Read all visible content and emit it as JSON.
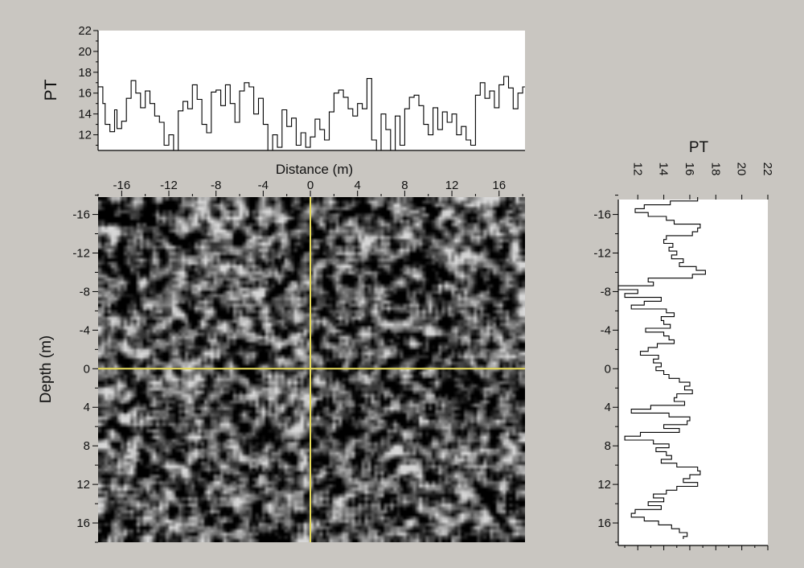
{
  "colors": {
    "background": "#c9c6c1",
    "panel": "#ffffff",
    "crosshair": "#e8dc5a",
    "line": "#000000"
  },
  "chart_data": [
    {
      "type": "line",
      "name_key": "top-profile",
      "ylabel": "PT",
      "xlabel": "Distance (m)",
      "ylim": [
        10.5,
        22
      ],
      "xlim": [
        -18,
        18.2
      ],
      "yticks": [
        12,
        14,
        16,
        18,
        20,
        22
      ],
      "step": true,
      "x": [
        -18,
        -17.6,
        -17.4,
        -17,
        -16.6,
        -16.4,
        -16,
        -15.6,
        -15.2,
        -14.8,
        -14.4,
        -14,
        -13.6,
        -13.2,
        -12.8,
        -12.4,
        -12,
        -11.6,
        -11.2,
        -10.8,
        -10.4,
        -10,
        -9.6,
        -9.2,
        -8.8,
        -8.4,
        -8,
        -7.6,
        -7.2,
        -6.8,
        -6.4,
        -6,
        -5.6,
        -5.2,
        -4.8,
        -4.4,
        -4,
        -3.6,
        -3.2,
        -2.8,
        -2.4,
        -2,
        -1.6,
        -1.2,
        -0.8,
        -0.4,
        0,
        0.4,
        0.8,
        1.2,
        1.6,
        2,
        2.4,
        2.8,
        3.2,
        3.6,
        4,
        4.4,
        4.8,
        5.2,
        5.6,
        6,
        6.4,
        6.8,
        7.2,
        7.6,
        8,
        8.4,
        8.8,
        9.2,
        9.6,
        10,
        10.4,
        10.8,
        11.2,
        11.6,
        12,
        12.4,
        12.8,
        13.2,
        13.6,
        14,
        14.4,
        14.8,
        15.2,
        15.6,
        16,
        16.4,
        16.8,
        17.2,
        17.6,
        18
      ],
      "values": [
        16.6,
        15,
        13,
        12.3,
        14.4,
        12.6,
        13.3,
        15.5,
        17.2,
        16,
        14.6,
        16.2,
        15,
        13.8,
        13.2,
        11,
        12,
        10.3,
        14.3,
        15.2,
        14.5,
        16.8,
        15.4,
        13,
        12.2,
        16.1,
        16.3,
        14.8,
        16.8,
        15,
        13.2,
        16.2,
        17,
        16.6,
        14,
        15.5,
        13,
        10,
        12,
        10.8,
        14.4,
        12.8,
        13.6,
        11,
        12.2,
        10.8,
        11.8,
        13.5,
        12.5,
        11.5,
        14.2,
        16,
        16.3,
        15.6,
        14.5,
        13.8,
        15,
        14.5,
        17.4,
        11.5,
        10.4,
        14,
        12.5,
        10.5,
        13.8,
        11,
        14.5,
        15.6,
        15.8,
        14.8,
        13,
        12,
        14.6,
        12.5,
        14.2,
        13.2,
        14,
        12,
        12.8,
        11.5,
        11,
        15.8,
        17,
        15.5,
        16.2,
        14.6,
        16.8,
        17.6,
        16.5,
        14.5,
        16,
        16.6
      ]
    },
    {
      "type": "heatmap",
      "name_key": "main-image",
      "xlabel": "Distance (m)",
      "ylabel": "Depth (m)",
      "xlim": [
        -18,
        18.2
      ],
      "ylim": [
        -17.8,
        18
      ],
      "xticks": [
        -16,
        -12,
        -8,
        -4,
        0,
        4,
        8,
        12,
        16
      ],
      "yticks": [
        -16,
        -12,
        -8,
        -4,
        0,
        4,
        8,
        12,
        16
      ],
      "crosshair": {
        "x": 0,
        "y": 0
      }
    },
    {
      "type": "line",
      "name_key": "side-profile",
      "xlabel": "PT",
      "xlim": [
        10.5,
        22
      ],
      "ylim": [
        -17.8,
        18
      ],
      "xticks": [
        12,
        14,
        16,
        18,
        20,
        22
      ],
      "yticks": [
        -16,
        -12,
        -8,
        -4,
        0,
        4,
        8,
        12,
        16
      ],
      "step": true,
      "y": [
        -17.8,
        -17.4,
        -17,
        -16.6,
        -16.2,
        -15.8,
        -15.4,
        -15,
        -14.6,
        -14.2,
        -13.8,
        -13.4,
        -13,
        -12.6,
        -12.2,
        -11.8,
        -11.4,
        -11,
        -10.6,
        -10.2,
        -9.8,
        -9.4,
        -9,
        -8.6,
        -8.2,
        -7.8,
        -7.4,
        -7,
        -6.6,
        -6.2,
        -5.8,
        -5.4,
        -5,
        -4.6,
        -4.2,
        -3.8,
        -3.4,
        -3,
        -2.6,
        -2.2,
        -1.8,
        -1.4,
        -1,
        -0.6,
        -0.2,
        0.2,
        0.6,
        1,
        1.4,
        1.8,
        2.2,
        2.6,
        3,
        3.4,
        3.8,
        4.2,
        4.6,
        5,
        5.4,
        5.8,
        6.2,
        6.6,
        7,
        7.4,
        7.8,
        8.2,
        8.6,
        9,
        9.4,
        9.8,
        10.2,
        10.6,
        11,
        11.4,
        11.8,
        12.2,
        12.6,
        13,
        13.4,
        13.8,
        14.2,
        14.6,
        15,
        15.4,
        15.8,
        16.2,
        16.6,
        17,
        17.4
      ],
      "values": [
        16.6,
        14.5,
        12.5,
        11.8,
        12.8,
        14.2,
        14.8,
        16.8,
        16.6,
        16.2,
        14.2,
        14,
        14.7,
        14.4,
        15,
        14.6,
        15.5,
        15.2,
        16.5,
        17.2,
        16.2,
        12.8,
        13.2,
        10.5,
        12,
        11,
        13.8,
        12.5,
        11.5,
        14.2,
        14.8,
        13.8,
        14,
        14.5,
        12.6,
        14,
        14.4,
        14.8,
        13.5,
        12.8,
        12.2,
        13.6,
        13.2,
        13.8,
        13.4,
        14,
        14.4,
        15.2,
        16,
        15.6,
        16.2,
        15,
        14.8,
        15.6,
        13,
        11.5,
        14.4,
        16,
        15.8,
        14,
        15.2,
        12.2,
        11,
        13.2,
        14.4,
        13.4,
        14.2,
        14.6,
        13.8,
        15,
        16.6,
        16.8,
        16,
        15.5,
        16.6,
        15,
        14.2,
        13.2,
        14,
        12.8,
        13.8,
        11.8,
        11.5,
        12.5,
        13.6,
        14.6,
        15.2,
        15.8,
        15.5
      ]
    }
  ]
}
